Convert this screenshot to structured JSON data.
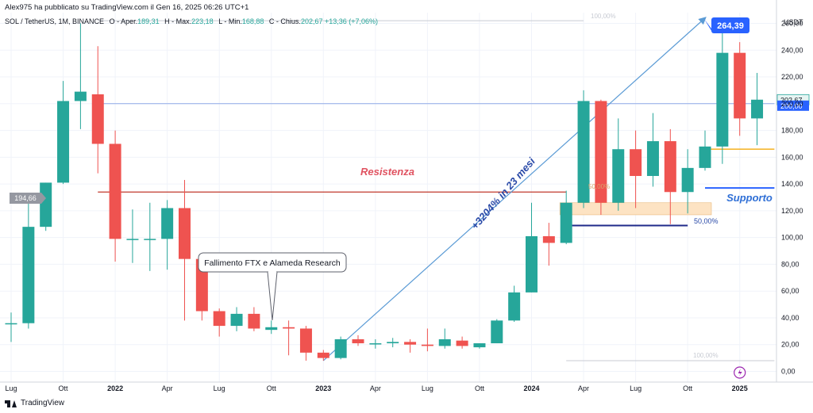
{
  "header": {
    "publisher": "Alex975 ha pubblicato su TradingView.com il Gen 16, 2025 06:26 UTC+1",
    "symbol": "SOL / TetherUS, 1M, BINANCE",
    "open_label": "O - Aper.",
    "open": "189,31",
    "high_label": "H - Max.",
    "high": "223,18",
    "low_label": "L - Min.",
    "low": "168,88",
    "close_label": "C - Chius.",
    "close": "202,67",
    "change": "+13,36 (+7,06%)"
  },
  "brand": {
    "name": "TradingView",
    "icon": "tradingview-logo-icon"
  },
  "colors": {
    "up": "#26a69a",
    "down": "#ef5350",
    "trend": "#5b9bd5",
    "resistance": "#c0392b",
    "support_line": "#2962ff",
    "support_text": "#2f6fd6",
    "fib_line": "#1f2a8a",
    "fib_zone": "#fde3c3",
    "orange": "#f5b731",
    "price_label_bg": "#2962ff",
    "grid": "#f0f3fa"
  },
  "chart_data": {
    "type": "candlestick",
    "symbol": "SOL / TetherUS, 1M, BINANCE",
    "xlabel": "",
    "ylabel": "",
    "y_axis_label": "USDT",
    "ylim": [
      -8,
      268
    ],
    "yticks": [
      0,
      20,
      40,
      60,
      80,
      100,
      120,
      140,
      160,
      180,
      200,
      220,
      240,
      260
    ],
    "ytick_labels": [
      "0,00",
      "20,00",
      "40,00",
      "60,00",
      "80,00",
      "100,00",
      "120,00",
      "140,00",
      "160,00",
      "180,00",
      "200,00",
      "220,00",
      "240,00",
      "260,00"
    ],
    "x_ticks": [
      {
        "label": "Lug",
        "index": 0
      },
      {
        "label": "Ott",
        "index": 3
      },
      {
        "label": "2022",
        "index": 6
      },
      {
        "label": "Apr",
        "index": 9
      },
      {
        "label": "Lug",
        "index": 12
      },
      {
        "label": "Ott",
        "index": 15
      },
      {
        "label": "2023",
        "index": 18
      },
      {
        "label": "Apr",
        "index": 21
      },
      {
        "label": "Lug",
        "index": 24
      },
      {
        "label": "Ott",
        "index": 27
      },
      {
        "label": "2024",
        "index": 30
      },
      {
        "label": "Apr",
        "index": 33
      },
      {
        "label": "Lug",
        "index": 36
      },
      {
        "label": "Ott",
        "index": 39
      },
      {
        "label": "2025",
        "index": 42
      }
    ],
    "candles": [
      {
        "date": "2021-07",
        "open": 36,
        "high": 44,
        "low": 22,
        "close": 36
      },
      {
        "date": "2021-08",
        "open": 36,
        "high": 130,
        "low": 32,
        "close": 108
      },
      {
        "date": "2021-09",
        "open": 108,
        "high": 141,
        "low": 105,
        "close": 141
      },
      {
        "date": "2021-10",
        "open": 141,
        "high": 217,
        "low": 140,
        "close": 202
      },
      {
        "date": "2021-11",
        "open": 202,
        "high": 260,
        "low": 181,
        "close": 209
      },
      {
        "date": "2021-12",
        "open": 207,
        "high": 243,
        "low": 148,
        "close": 170
      },
      {
        "date": "2022-01",
        "open": 170,
        "high": 180,
        "low": 82,
        "close": 99
      },
      {
        "date": "2022-02",
        "open": 99,
        "high": 121,
        "low": 81,
        "close": 99
      },
      {
        "date": "2022-03",
        "open": 99,
        "high": 126,
        "low": 75,
        "close": 99
      },
      {
        "date": "2022-04",
        "open": 99,
        "high": 128,
        "low": 76,
        "close": 122
      },
      {
        "date": "2022-05",
        "open": 122,
        "high": 143,
        "low": 38,
        "close": 84
      },
      {
        "date": "2022-06",
        "open": 84,
        "high": 86,
        "low": 38,
        "close": 45
      },
      {
        "date": "2022-07",
        "open": 45,
        "high": 47,
        "low": 26,
        "close": 34
      },
      {
        "date": "2022-08",
        "open": 34,
        "high": 48,
        "low": 30,
        "close": 43
      },
      {
        "date": "2022-09",
        "open": 43,
        "high": 48,
        "low": 30,
        "close": 32
      },
      {
        "date": "2022-10",
        "open": 31,
        "high": 38,
        "low": 28,
        "close": 33
      },
      {
        "date": "2022-11",
        "open": 33,
        "high": 38,
        "low": 12,
        "close": 32
      },
      {
        "date": "2022-12",
        "open": 32,
        "high": 34,
        "low": 8,
        "close": 14
      },
      {
        "date": "2023-01",
        "open": 14,
        "high": 16,
        "low": 8,
        "close": 10
      },
      {
        "date": "2023-02",
        "open": 10,
        "high": 26,
        "low": 9,
        "close": 24
      },
      {
        "date": "2023-03",
        "open": 24,
        "high": 27,
        "low": 19,
        "close": 21
      },
      {
        "date": "2023-04",
        "open": 21,
        "high": 24,
        "low": 17,
        "close": 21
      },
      {
        "date": "2023-05",
        "open": 21,
        "high": 25,
        "low": 18,
        "close": 22
      },
      {
        "date": "2023-06",
        "open": 22,
        "high": 24,
        "low": 14,
        "close": 20
      },
      {
        "date": "2023-07",
        "open": 20,
        "high": 32,
        "low": 15,
        "close": 19
      },
      {
        "date": "2023-08",
        "open": 19,
        "high": 32,
        "low": 17,
        "close": 24
      },
      {
        "date": "2023-09",
        "open": 23,
        "high": 26,
        "low": 17,
        "close": 19
      },
      {
        "date": "2023-10",
        "open": 18,
        "high": 21,
        "low": 17,
        "close": 21
      },
      {
        "date": "2023-11",
        "open": 21,
        "high": 39,
        "low": 21,
        "close": 38
      },
      {
        "date": "2023-12",
        "open": 38,
        "high": 64,
        "low": 37,
        "close": 59
      },
      {
        "date": "2024-01",
        "open": 59,
        "high": 126,
        "low": 59,
        "close": 101
      },
      {
        "date": "2024-02",
        "open": 101,
        "high": 111,
        "low": 79,
        "close": 96
      },
      {
        "date": "2024-03",
        "open": 96,
        "high": 135,
        "low": 95,
        "close": 126
      },
      {
        "date": "2024-04",
        "open": 126,
        "high": 210,
        "low": 122,
        "close": 202
      },
      {
        "date": "2024-05",
        "open": 202,
        "high": 203,
        "low": 117,
        "close": 126
      },
      {
        "date": "2024-06",
        "open": 126,
        "high": 189,
        "low": 120,
        "close": 166
      },
      {
        "date": "2024-07",
        "open": 166,
        "high": 180,
        "low": 122,
        "close": 146
      },
      {
        "date": "2024-08",
        "open": 146,
        "high": 193,
        "low": 138,
        "close": 172
      },
      {
        "date": "2024-09",
        "open": 172,
        "high": 181,
        "low": 110,
        "close": 134
      },
      {
        "date": "2024-10",
        "open": 134,
        "high": 166,
        "low": 118,
        "close": 152
      },
      {
        "date": "2024-11",
        "open": 152,
        "high": 180,
        "low": 150,
        "close": 168
      },
      {
        "date": "2024-12",
        "open": 168,
        "high": 264,
        "low": 155,
        "close": 238
      },
      {
        "date": "2025-01",
        "open": 238,
        "high": 246,
        "low": 176,
        "close": 189
      },
      {
        "date": "2025-02",
        "open": 189,
        "high": 223,
        "low": 169,
        "close": 203
      }
    ],
    "price_labels": [
      {
        "text": "264,39",
        "value": 264.39,
        "style": "callout"
      },
      {
        "text": "202,67",
        "value": 202.67,
        "style": "last"
      },
      {
        "text": "200,00",
        "value": 200,
        "style": "level"
      }
    ],
    "horizontal_lines": [
      {
        "value": 200,
        "from_index": 5,
        "to_index": 44,
        "color": "blue-thin"
      },
      {
        "value": 134,
        "from_index": 5,
        "to_index": 32,
        "color": "resistance"
      },
      {
        "value": 166,
        "from_index": 40,
        "to_index": 44,
        "color": "orange"
      },
      {
        "value": 137,
        "from_index": 40,
        "to_index": 44,
        "color": "support"
      },
      {
        "value": 109,
        "from_index": 32,
        "to_index": 39,
        "color": "fib"
      },
      {
        "value": 262,
        "from_index": 5,
        "to_index": 33,
        "color": "grey"
      },
      {
        "value": 8,
        "from_index": 32,
        "to_index": 44,
        "color": "grey"
      }
    ],
    "fib_zone": {
      "from_index": 32,
      "to_index": 40,
      "top": 126,
      "bottom": 117
    },
    "trend_line": {
      "from_index": 18,
      "from_value": 8,
      "to_index": 40,
      "to_value": 264
    },
    "annotations": [
      {
        "text": "Resistenza",
        "type": "label"
      },
      {
        "text": "Supporto",
        "type": "label"
      },
      {
        "text": "+3204% in 23 mesi",
        "type": "trend-label"
      },
      {
        "text": "Fallimento FTX e Alameda Research",
        "type": "callout"
      },
      {
        "text": "194,66",
        "type": "price-tag"
      },
      {
        "text": "100,00%",
        "type": "fib-label-top"
      },
      {
        "text": "50,00%",
        "type": "fib-label"
      },
      {
        "text": "50,00%",
        "type": "fib-label-faded"
      },
      {
        "text": "100,00%",
        "type": "fib-label-bottom"
      }
    ]
  }
}
